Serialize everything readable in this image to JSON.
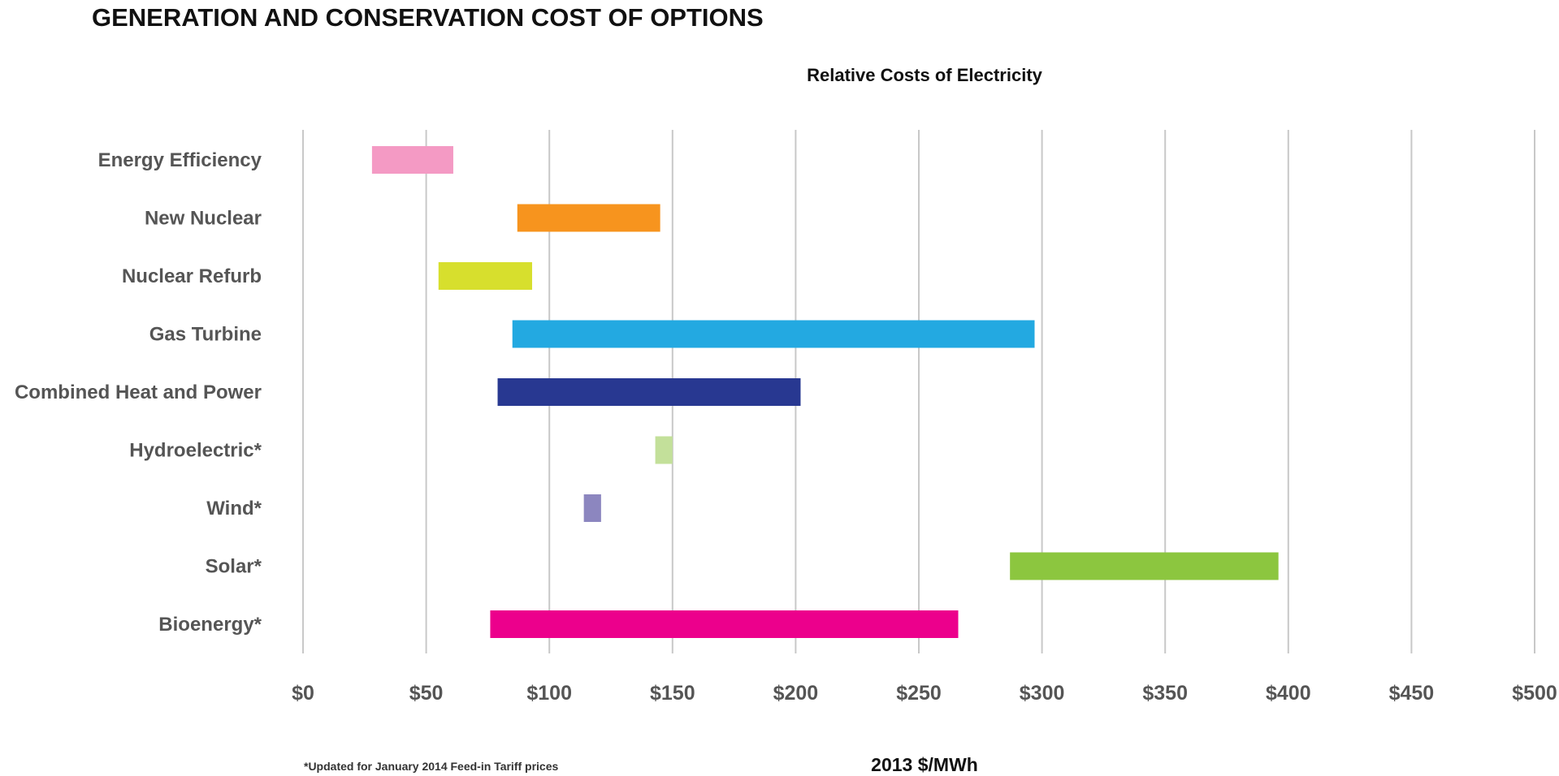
{
  "page_title": "GENERATION AND CONSERVATION COST OF OPTIONS",
  "footnote": "*Updated for January 2014 Feed-in Tariff prices",
  "chart_data": {
    "type": "bar",
    "orientation": "horizontal-range",
    "title": "Relative Costs of Electricity",
    "xlabel": "2013 $/MWh",
    "ylabel": "",
    "xlim": [
      0,
      500
    ],
    "x_ticks": [
      0,
      50,
      100,
      150,
      200,
      250,
      300,
      350,
      400,
      450,
      500
    ],
    "x_tick_labels": [
      "$0",
      "$50",
      "$100",
      "$150",
      "$200",
      "$250",
      "$300",
      "$350",
      "$400",
      "$450",
      "$500"
    ],
    "grid": "vertical",
    "categories": [
      "Energy Efficiency",
      "New Nuclear",
      "Nuclear Refurb",
      "Gas Turbine",
      "Combined Heat and Power",
      "Hydroelectric*",
      "Wind*",
      "Solar*",
      "Bioenergy*"
    ],
    "ranges": [
      [
        28,
        61
      ],
      [
        87,
        145
      ],
      [
        55,
        93
      ],
      [
        85,
        297
      ],
      [
        79,
        202
      ],
      [
        143,
        150
      ],
      [
        114,
        121
      ],
      [
        287,
        396
      ],
      [
        76,
        266
      ]
    ],
    "colors": [
      "#f49ac4",
      "#f7941e",
      "#d7df2d",
      "#23a9e1",
      "#283891",
      "#c3e09a",
      "#8c86bf",
      "#8cc63f",
      "#ec008c"
    ]
  }
}
